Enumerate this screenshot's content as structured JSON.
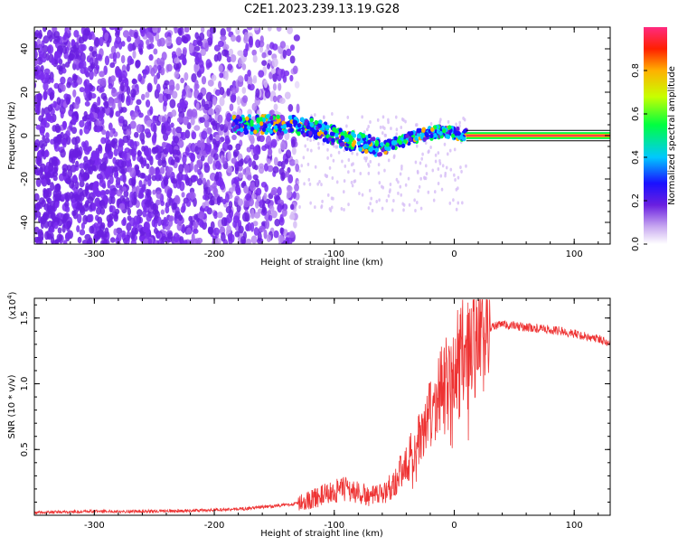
{
  "title": "C2E1.2023.239.13.19.G28",
  "chart_data": [
    {
      "type": "heatmap",
      "xlabel": "Height of straight line (km)",
      "ylabel": "Frequency (Hz)",
      "xlim": [
        -350,
        130
      ],
      "ylim": [
        -50,
        50
      ],
      "xticks": [
        -300,
        -200,
        -100,
        0,
        100
      ],
      "yticks": [
        -40,
        -20,
        0,
        20,
        40
      ],
      "colorbar": {
        "label": "Normalized spectral amplitude",
        "range": [
          0,
          1
        ],
        "ticks": [
          "0.0",
          "0.2",
          "0.4",
          "0.6",
          "0.8"
        ]
      },
      "ridge": {
        "x": [
          -180,
          -160,
          -140,
          -120,
          -110,
          -100,
          -90,
          -80,
          -70,
          -60,
          -50,
          -40,
          -30,
          -20,
          -10,
          0,
          10,
          50,
          100,
          130
        ],
        "y": [
          5,
          5,
          5,
          4,
          2,
          0,
          -2,
          -3,
          -4,
          -6,
          -4,
          -2,
          0,
          1,
          2,
          1,
          0,
          0,
          0,
          0
        ]
      }
    },
    {
      "type": "line",
      "xlabel": "Height of straight line (km)",
      "ylabel": "SNR (10 * v/v)",
      "yscale_label": "(x10",
      "yscale_exp": "4",
      "xlim": [
        -350,
        130
      ],
      "ylim": [
        0,
        1.65
      ],
      "xticks": [
        -300,
        -200,
        -100,
        0,
        100
      ],
      "yticks": [
        "0.5",
        "1.0",
        "1.5"
      ],
      "color": "#ee3333",
      "envelope": {
        "x": [
          -350,
          -300,
          -250,
          -200,
          -175,
          -150,
          -130,
          -120,
          -110,
          -100,
          -90,
          -80,
          -70,
          -60,
          -50,
          -40,
          -30,
          -20,
          -10,
          0,
          10,
          20,
          30,
          40,
          50,
          70,
          90,
          110,
          130
        ],
        "y": [
          0.02,
          0.03,
          0.03,
          0.04,
          0.05,
          0.07,
          0.09,
          0.12,
          0.15,
          0.18,
          0.2,
          0.17,
          0.14,
          0.16,
          0.25,
          0.4,
          0.55,
          0.75,
          0.95,
          1.1,
          1.25,
          1.38,
          1.43,
          1.45,
          1.44,
          1.42,
          1.4,
          1.36,
          1.32
        ]
      }
    }
  ]
}
